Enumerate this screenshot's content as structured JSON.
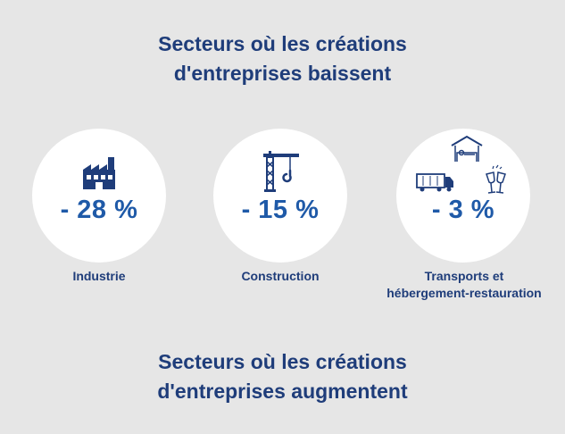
{
  "headings": {
    "decrease": [
      "Secteurs où les créations",
      "d'entreprises baissent"
    ],
    "increase": [
      "Secteurs où les créations",
      "d'entreprises augmentent"
    ]
  },
  "stats": [
    {
      "value": "- 28 %",
      "label": [
        "Industrie"
      ],
      "icon": "factory-icon"
    },
    {
      "value": "- 15 %",
      "label": [
        "Construction"
      ],
      "icon": "crane-icon"
    },
    {
      "value": "- 3 %",
      "label": [
        "Transports et",
        "hébergement-restauration"
      ],
      "icon": "truck-bed-glasses-icon"
    }
  ],
  "colors": {
    "background": "#e6e6e6",
    "heading": "#1f3d7a",
    "value": "#1f5aa8",
    "circle": "#ffffff"
  }
}
